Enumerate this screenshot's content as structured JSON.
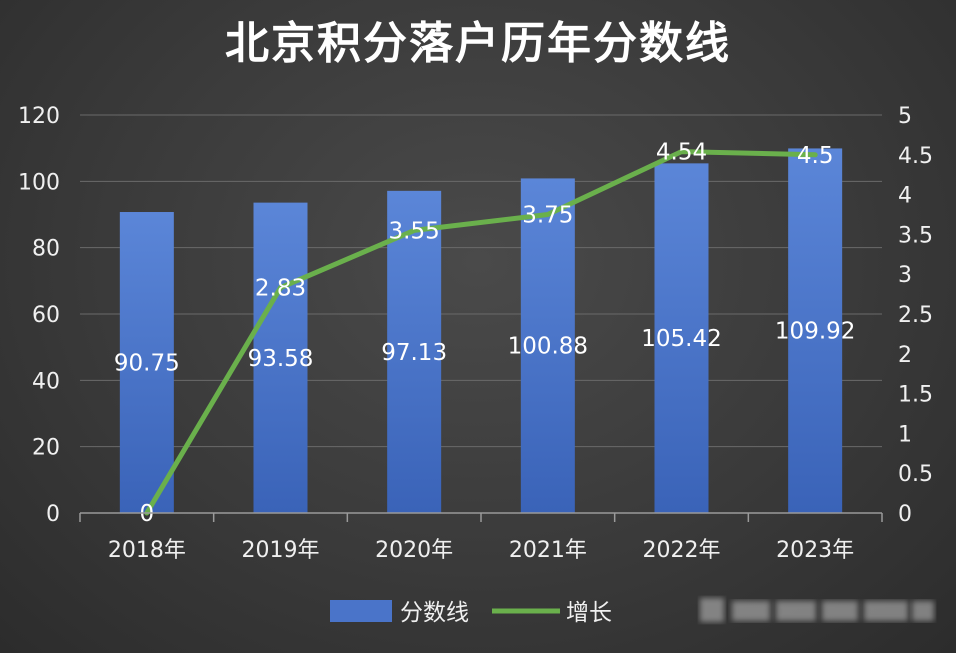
{
  "chart_data": {
    "type": "bar",
    "title": "北京积分落户历年分数线",
    "categories": [
      "2018年",
      "2019年",
      "2020年",
      "2021年",
      "2022年",
      "2023年"
    ],
    "series": [
      {
        "name": "分数线",
        "type": "bar",
        "axis": "left",
        "values": [
          90.75,
          93.58,
          97.13,
          100.88,
          105.42,
          109.92
        ],
        "labels": [
          "90.75",
          "93.58",
          "97.13",
          "100.88",
          "105.42",
          "109.92"
        ],
        "color": "#4a74c9"
      },
      {
        "name": "增长",
        "type": "line",
        "axis": "right",
        "values": [
          0,
          2.83,
          3.55,
          3.75,
          4.54,
          4.5
        ],
        "labels": [
          "0",
          "2.83",
          "3.55",
          "3.75",
          "4.54",
          "4.5"
        ],
        "color": "#6ab04c"
      }
    ],
    "y_left": {
      "min": 0,
      "max": 120,
      "ticks": [
        "0",
        "20",
        "40",
        "60",
        "80",
        "100",
        "120"
      ]
    },
    "y_right": {
      "min": 0,
      "max": 5,
      "ticks": [
        "0",
        "0.5",
        "1",
        "1.5",
        "2",
        "2.5",
        "3",
        "3.5",
        "4",
        "4.5",
        "5"
      ]
    },
    "grid": true,
    "legend_position": "bottom"
  },
  "colors": {
    "grid": "#6a6a6a",
    "axis": "#9a9a9a"
  }
}
